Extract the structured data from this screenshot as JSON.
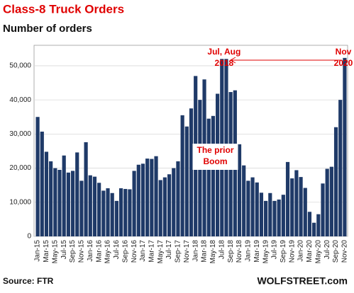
{
  "chart_data": {
    "type": "bar",
    "title": "Class-8 Truck Orders",
    "subtitle": "Number of orders",
    "source": "Source: FTR",
    "credit": "WOLFSTREET.com",
    "annotations": [
      {
        "lines": [
          "Jul, Aug",
          "2018"
        ]
      },
      {
        "lines": [
          "Nov",
          "2020"
        ]
      },
      {
        "lines": [
          "The prior",
          "Boom"
        ]
      }
    ],
    "color": "#1f3a68",
    "grid": true,
    "ylim": [
      0,
      56000
    ],
    "yticks": [
      0,
      {
        "value": 10000,
        "label": "10,000"
      },
      {
        "value": 20000,
        "label": "20,000"
      },
      {
        "value": 30000,
        "label": "30,000"
      },
      {
        "value": 40000,
        "label": "40,000"
      },
      {
        "value": 50000,
        "label": "50,000"
      }
    ],
    "categories": [
      "Jan-15",
      null,
      "Mar-15",
      null,
      "May-15",
      null,
      "Jul-15",
      null,
      "Sep-15",
      null,
      "Nov-15",
      null,
      "Jan-16",
      null,
      "Mar-16",
      null,
      "May-16",
      null,
      "Jul-16",
      null,
      "Sep-16",
      null,
      "Nov-16",
      null,
      "Jan-17",
      null,
      "Mar-17",
      null,
      "May-17",
      null,
      "Jul-17",
      null,
      "Sep-17",
      null,
      "Nov-17",
      null,
      "Jan-18",
      null,
      "Mar-18",
      null,
      "May-18",
      null,
      "Jul-18",
      null,
      "Sep-18",
      null,
      "Nov-18",
      null,
      "Jan-19",
      null,
      "Mar-19",
      null,
      "May-19",
      null,
      "Jul-19",
      null,
      "Sep-19",
      null,
      "Nov-19",
      null,
      "Jan-20",
      null,
      "Mar-20",
      null,
      "May-20",
      null,
      "Jul-20",
      null,
      "Sep-20",
      null,
      "Nov-20"
    ],
    "values": [
      35000,
      30700,
      24800,
      22000,
      20000,
      19500,
      23700,
      18700,
      19200,
      24600,
      16300,
      27600,
      17900,
      17500,
      15700,
      13400,
      14100,
      12700,
      10400,
      14100,
      13900,
      13800,
      19200,
      21000,
      21300,
      22800,
      22700,
      23500,
      16500,
      17300,
      18200,
      20000,
      22000,
      35500,
      32200,
      37500,
      47000,
      40000,
      46000,
      34500,
      35300,
      41800,
      52000,
      52000,
      42300,
      42800,
      27000,
      20800,
      16300,
      17300,
      15800,
      12800,
      10400,
      12700,
      10400,
      10800,
      12200,
      21800,
      17000,
      19400,
      17400,
      14200,
      7200,
      4000,
      6500,
      15500,
      19800,
      20400,
      32000,
      40000,
      52300
    ]
  }
}
